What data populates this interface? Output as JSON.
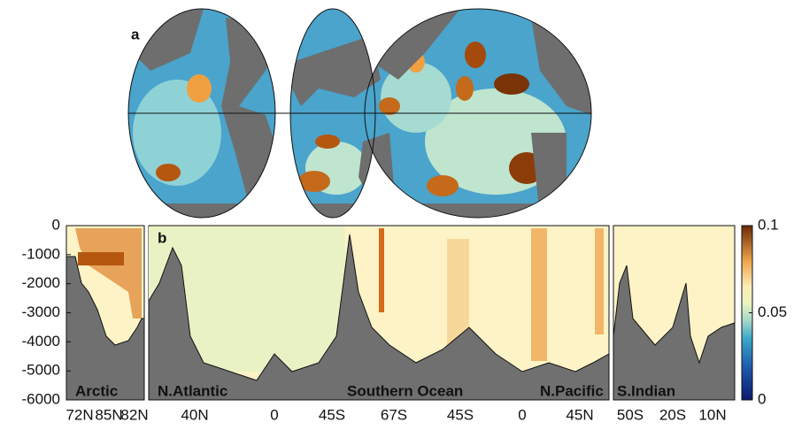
{
  "figure": {
    "panel_a": {
      "label": "a"
    },
    "panel_b": {
      "label": "b",
      "ylim": [
        -6000,
        0
      ],
      "yticks": [
        0,
        -1000,
        -2000,
        -3000,
        -4000,
        -5000,
        -6000
      ],
      "xtick_labels": [
        "72N",
        "85N",
        "82N",
        "40N",
        "0",
        "45S",
        "67S",
        "45S",
        "0",
        "45N",
        "50S",
        "20S",
        "10N"
      ],
      "regions": [
        "Arctic",
        "N.Atlantic",
        "Southern Ocean",
        "N.Pacific",
        "S.Indian"
      ]
    },
    "colorbar": {
      "clim": [
        0,
        0.1
      ],
      "ticks": [
        0,
        0.05,
        0.1
      ]
    }
  }
}
